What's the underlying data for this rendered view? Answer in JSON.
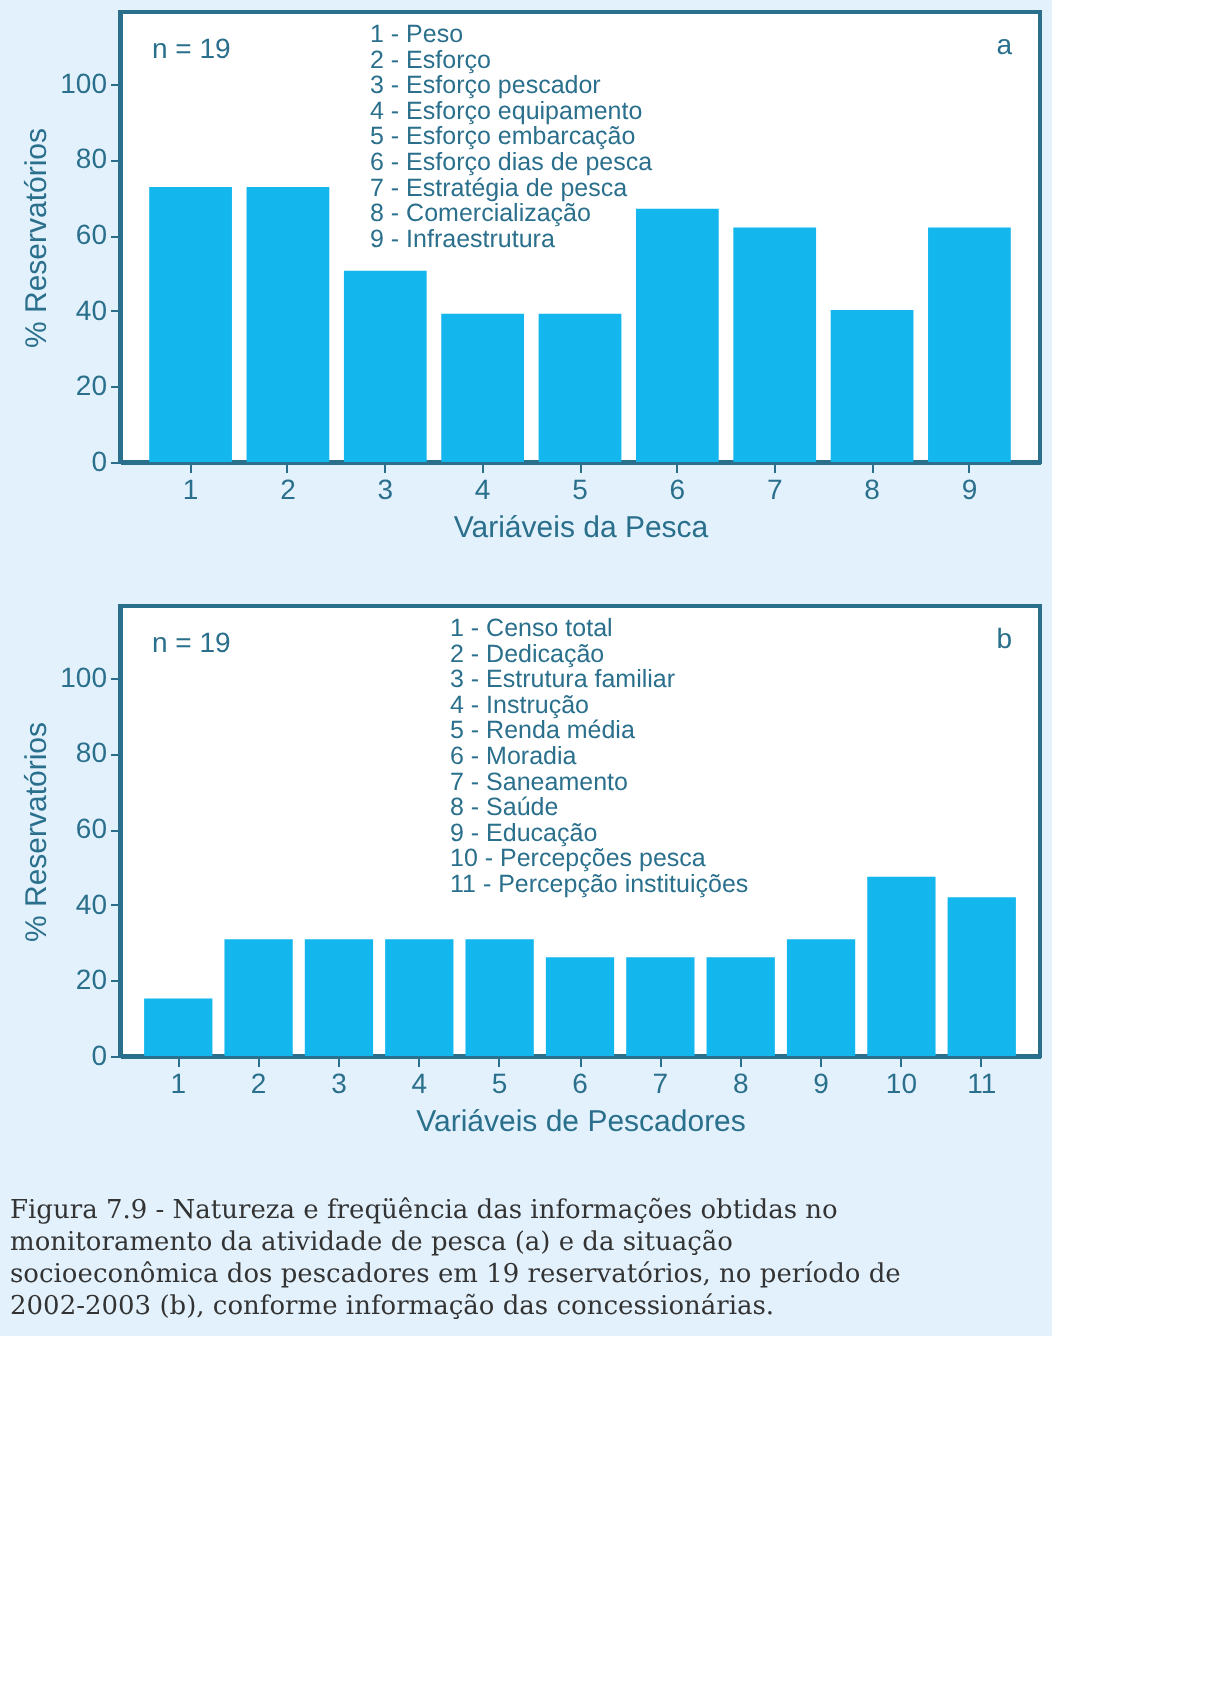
{
  "chart_data": [
    {
      "type": "bar",
      "xlabel": "Variáveis da Pesca",
      "ylabel": "% Reservatórios",
      "categories": [
        "1",
        "2",
        "3",
        "4",
        "5",
        "6",
        "7",
        "8",
        "9"
      ],
      "values": [
        72.7,
        72.7,
        50.6,
        39.2,
        39.2,
        67,
        62,
        40.2,
        62
      ],
      "color": "#14b6ee",
      "ylim": [
        0,
        119
      ],
      "yticks": [
        0,
        20,
        40,
        60,
        80,
        100
      ],
      "grid": false,
      "annotations": [
        "n = 19",
        "a",
        "1 - Peso",
        "2 - Esforço",
        "3 - Esforço pescador",
        "4 - Esforço equipamento",
        "5 - Esforço embarcação",
        "6 - Esforço dias de pesca",
        "7 - Estratégia de pesca",
        "8 - Comercialização",
        "9 - Infraestrutura"
      ]
    },
    {
      "type": "bar",
      "xlabel": "Variáveis de Pescadores",
      "ylabel": "% Reservatórios",
      "categories": [
        "1",
        "2",
        "3",
        "4",
        "5",
        "6",
        "7",
        "8",
        "9",
        "10",
        "11"
      ],
      "values": [
        15.2,
        30.9,
        30.9,
        30.9,
        30.9,
        26.1,
        26.1,
        26.1,
        30.9,
        47.4,
        42
      ],
      "color": "#14b6ee",
      "ylim": [
        0,
        119
      ],
      "yticks": [
        0,
        20,
        40,
        60,
        80,
        100
      ],
      "grid": false,
      "annotations": [
        "n = 19",
        "b",
        "1 - Censo total",
        "2 - Dedicação",
        "3 - Estrutura familiar",
        "4 - Instrução",
        "5 - Renda média",
        "6 - Moradia",
        "7 - Saneamento",
        "8 - Saúde",
        "9 - Educação",
        "10 - Percepções pesca",
        "11 - Percepção instituições"
      ]
    },
    {
      "type": "other",
      "annotations": [
        "Figura 7.9 - Natureza e freqüência das informações obtidas no monitoramento da atividade de pesca (a) e da situação socioeconômica dos pescadores em 19 reservatórios, no período de 2002-2003 (b), conforme informação das concessionárias."
      ]
    }
  ]
}
